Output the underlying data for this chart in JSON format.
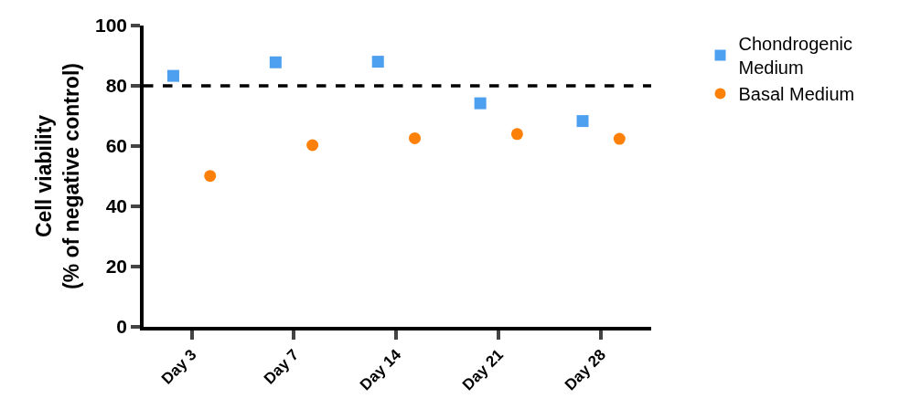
{
  "chart_data": {
    "type": "scatter",
    "ylabel": "Cell viability\n(% of negative control)",
    "categories": [
      "Day 3",
      "Day 7",
      "Day 14",
      "Day 21",
      "Day 28"
    ],
    "series": [
      {
        "name": "Chondrogenic Medium",
        "color": "#4d9fef",
        "marker": "square",
        "values": [
          83.3,
          87.8,
          88.0,
          74.2,
          68.3
        ]
      },
      {
        "name": "Basal Medium",
        "color": "#fd8008",
        "marker": "circle",
        "values": [
          50.1,
          60.3,
          62.6,
          64.0,
          62.4
        ]
      }
    ],
    "ylim": [
      0,
      100
    ],
    "yticks": [
      0,
      20,
      40,
      60,
      80,
      100
    ],
    "ref_lines": [
      {
        "axis": "y",
        "value": 80,
        "color": "#000000",
        "line_style": "dashed"
      }
    ],
    "legend": "top right"
  }
}
